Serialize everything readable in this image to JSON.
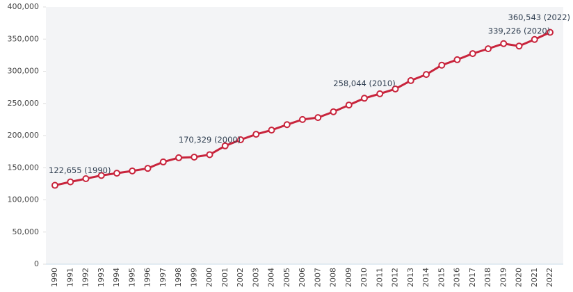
{
  "chart_data": {
    "type": "line",
    "categories": [
      "1990",
      "1991",
      "1992",
      "1993",
      "1994",
      "1995",
      "1996",
      "1997",
      "1998",
      "1999",
      "2000",
      "2001",
      "2002",
      "2003",
      "2004",
      "2005",
      "2006",
      "2007",
      "2008",
      "2009",
      "2010",
      "2011",
      "2012",
      "2013",
      "2014",
      "2015",
      "2016",
      "2017",
      "2018",
      "2019",
      "2020",
      "2021",
      "2022"
    ],
    "series": [
      {
        "color": "#c8243c",
        "values": [
          122655,
          128000,
          133000,
          138000,
          141500,
          145000,
          149000,
          159000,
          165500,
          166500,
          170329,
          184000,
          193500,
          202000,
          208500,
          217000,
          225000,
          228000,
          237000,
          247500,
          258044,
          265000,
          272500,
          285500,
          295000,
          309500,
          318000,
          327500,
          335000,
          343000,
          339226,
          349500,
          360543
        ],
        "value_labels": [
          "122,655 (1990)",
          null,
          null,
          null,
          null,
          null,
          null,
          null,
          null,
          null,
          "170,329 (2000)",
          null,
          null,
          null,
          null,
          null,
          null,
          null,
          null,
          null,
          "258,044 (2010)",
          null,
          null,
          null,
          null,
          null,
          null,
          null,
          null,
          null,
          "339,226 (2020)",
          null,
          "360,543 (2022)"
        ]
      }
    ],
    "ylim": [
      0,
      400000
    ],
    "yticks": [
      0,
      {
        "value": 50000,
        "label": "50,000"
      },
      {
        "value": 100000,
        "label": "100,000"
      },
      {
        "value": 150000,
        "label": "150,000"
      },
      {
        "value": 200000,
        "label": "200,000"
      },
      {
        "value": 250000,
        "label": "250,000"
      },
      {
        "value": 300000,
        "label": "300,000"
      },
      {
        "value": 350000,
        "label": "350,000"
      },
      {
        "value": 400000,
        "label": "400,000"
      }
    ],
    "grid": false
  }
}
